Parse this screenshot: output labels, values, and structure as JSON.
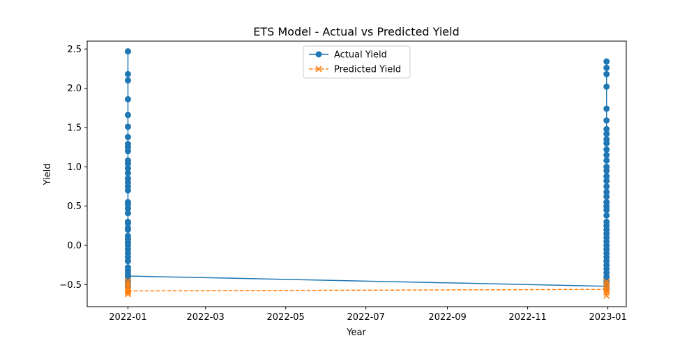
{
  "chart_data": {
    "type": "line",
    "title": "ETS Model - Actual vs Predicted Yield",
    "xlabel": "Year",
    "ylabel": "Yield",
    "x_ticks": [
      "2022-01",
      "2022-03",
      "2022-05",
      "2022-07",
      "2022-09",
      "2022-11",
      "2023-01"
    ],
    "y_ticks": [
      "−0.5",
      "0.0",
      "0.5",
      "1.0",
      "1.5",
      "2.0",
      "2.5"
    ],
    "xlim": [
      "2021-12-01",
      "2023-01-15"
    ],
    "ylim": [
      -0.78,
      2.6
    ],
    "legend_position": "top-center",
    "grid": false,
    "series": [
      {
        "name": "Actual Yield",
        "color": "#1f77b4",
        "marker": "circle",
        "line_style": "solid",
        "points": [
          {
            "x": "2022-01-01",
            "y": 2.47
          },
          {
            "x": "2022-01-01",
            "y": 2.18
          },
          {
            "x": "2022-01-01",
            "y": 2.1
          },
          {
            "x": "2022-01-01",
            "y": 1.86
          },
          {
            "x": "2022-01-01",
            "y": 1.66
          },
          {
            "x": "2022-01-01",
            "y": 1.51
          },
          {
            "x": "2022-01-01",
            "y": 1.38
          },
          {
            "x": "2022-01-01",
            "y": 1.29
          },
          {
            "x": "2022-01-01",
            "y": 1.25
          },
          {
            "x": "2022-01-01",
            "y": 1.2
          },
          {
            "x": "2022-01-01",
            "y": 1.08
          },
          {
            "x": "2022-01-01",
            "y": 1.04
          },
          {
            "x": "2022-01-01",
            "y": 0.98
          },
          {
            "x": "2022-01-01",
            "y": 0.92
          },
          {
            "x": "2022-01-01",
            "y": 0.85
          },
          {
            "x": "2022-01-01",
            "y": 0.8
          },
          {
            "x": "2022-01-01",
            "y": 0.75
          },
          {
            "x": "2022-01-01",
            "y": 0.7
          },
          {
            "x": "2022-01-01",
            "y": 0.55
          },
          {
            "x": "2022-01-01",
            "y": 0.52
          },
          {
            "x": "2022-01-01",
            "y": 0.47
          },
          {
            "x": "2022-01-01",
            "y": 0.41
          },
          {
            "x": "2022-01-01",
            "y": 0.3
          },
          {
            "x": "2022-01-01",
            "y": 0.28
          },
          {
            "x": "2022-01-01",
            "y": 0.22
          },
          {
            "x": "2022-01-01",
            "y": 0.2
          },
          {
            "x": "2022-01-01",
            "y": 0.12
          },
          {
            "x": "2022-01-01",
            "y": 0.08
          },
          {
            "x": "2022-01-01",
            "y": 0.04
          },
          {
            "x": "2022-01-01",
            "y": 0.0
          },
          {
            "x": "2022-01-01",
            "y": -0.05
          },
          {
            "x": "2022-01-01",
            "y": -0.1
          },
          {
            "x": "2022-01-01",
            "y": -0.15
          },
          {
            "x": "2022-01-01",
            "y": -0.2
          },
          {
            "x": "2022-01-01",
            "y": -0.28
          },
          {
            "x": "2022-01-01",
            "y": -0.32
          },
          {
            "x": "2022-01-01",
            "y": -0.36
          },
          {
            "x": "2022-01-01",
            "y": -0.4
          },
          {
            "x": "2022-01-01",
            "y": -0.45
          },
          {
            "x": "2022-01-01",
            "y": -0.48
          },
          {
            "x": "2022-01-01",
            "y": -0.52
          },
          {
            "x": "2022-01-01",
            "y": -0.39
          },
          {
            "x": "2022-12-31",
            "y": -0.52
          },
          {
            "x": "2022-12-31",
            "y": -0.55
          },
          {
            "x": "2022-12-31",
            "y": -0.48
          },
          {
            "x": "2022-12-31",
            "y": -0.44
          },
          {
            "x": "2022-12-31",
            "y": -0.4
          },
          {
            "x": "2022-12-31",
            "y": -0.35
          },
          {
            "x": "2022-12-31",
            "y": -0.3
          },
          {
            "x": "2022-12-31",
            "y": -0.25
          },
          {
            "x": "2022-12-31",
            "y": -0.2
          },
          {
            "x": "2022-12-31",
            "y": -0.15
          },
          {
            "x": "2022-12-31",
            "y": -0.1
          },
          {
            "x": "2022-12-31",
            "y": -0.05
          },
          {
            "x": "2022-12-31",
            "y": 0.0
          },
          {
            "x": "2022-12-31",
            "y": 0.05
          },
          {
            "x": "2022-12-31",
            "y": 0.1
          },
          {
            "x": "2022-12-31",
            "y": 0.15
          },
          {
            "x": "2022-12-31",
            "y": 0.2
          },
          {
            "x": "2022-12-31",
            "y": 0.25
          },
          {
            "x": "2022-12-31",
            "y": 0.3
          },
          {
            "x": "2022-12-31",
            "y": 0.38
          },
          {
            "x": "2022-12-31",
            "y": 0.45
          },
          {
            "x": "2022-12-31",
            "y": 0.5
          },
          {
            "x": "2022-12-31",
            "y": 0.55
          },
          {
            "x": "2022-12-31",
            "y": 0.62
          },
          {
            "x": "2022-12-31",
            "y": 0.68
          },
          {
            "x": "2022-12-31",
            "y": 0.75
          },
          {
            "x": "2022-12-31",
            "y": 0.82
          },
          {
            "x": "2022-12-31",
            "y": 0.88
          },
          {
            "x": "2022-12-31",
            "y": 0.95
          },
          {
            "x": "2022-12-31",
            "y": 1.0
          },
          {
            "x": "2022-12-31",
            "y": 1.08
          },
          {
            "x": "2022-12-31",
            "y": 1.15
          },
          {
            "x": "2022-12-31",
            "y": 1.22
          },
          {
            "x": "2022-12-31",
            "y": 1.3
          },
          {
            "x": "2022-12-31",
            "y": 1.35
          },
          {
            "x": "2022-12-31",
            "y": 1.42
          },
          {
            "x": "2022-12-31",
            "y": 1.48
          },
          {
            "x": "2022-12-31",
            "y": 1.59
          },
          {
            "x": "2022-12-31",
            "y": 1.74
          },
          {
            "x": "2022-12-31",
            "y": 2.02
          },
          {
            "x": "2022-12-31",
            "y": 2.18
          },
          {
            "x": "2022-12-31",
            "y": 2.26
          },
          {
            "x": "2022-12-31",
            "y": 2.34
          }
        ]
      },
      {
        "name": "Predicted Yield",
        "color": "#ff7f0e",
        "marker": "x",
        "line_style": "dashed",
        "points": [
          {
            "x": "2022-01-01",
            "y": -0.45
          },
          {
            "x": "2022-01-01",
            "y": -0.48
          },
          {
            "x": "2022-01-01",
            "y": -0.51
          },
          {
            "x": "2022-01-01",
            "y": -0.54
          },
          {
            "x": "2022-01-01",
            "y": -0.57
          },
          {
            "x": "2022-01-01",
            "y": -0.6
          },
          {
            "x": "2022-01-01",
            "y": -0.62
          },
          {
            "x": "2022-01-01",
            "y": -0.58
          },
          {
            "x": "2022-12-31",
            "y": -0.56
          },
          {
            "x": "2022-12-31",
            "y": -0.6
          },
          {
            "x": "2022-12-31",
            "y": -0.64
          },
          {
            "x": "2022-12-31",
            "y": -0.57
          },
          {
            "x": "2022-12-31",
            "y": -0.53
          },
          {
            "x": "2022-12-31",
            "y": -0.49
          },
          {
            "x": "2022-12-31",
            "y": -0.46
          }
        ]
      }
    ]
  }
}
